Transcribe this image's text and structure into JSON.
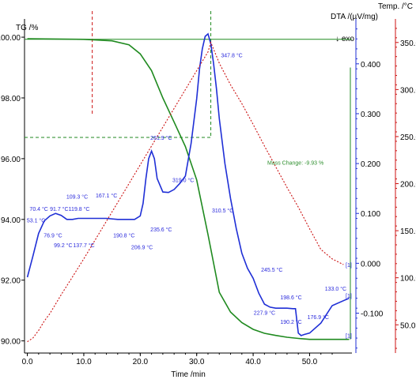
{
  "chart_data": {
    "type": "line",
    "title": "",
    "xlabel": "Time /min",
    "xlim": [
      -0.5,
      57.5
    ],
    "x_ticks": [
      0,
      10,
      20,
      30,
      40,
      50
    ],
    "x_tick_labels": [
      "0.0",
      "10.0",
      "20.0",
      "30.0",
      "40.0",
      "50.0"
    ],
    "axes": {
      "tg": {
        "label": "TG /%",
        "ylim": [
          89.6,
          100.6
        ],
        "ticks": [
          90,
          92,
          94,
          96,
          98,
          100
        ],
        "tick_labels": [
          "90.00",
          "92.00",
          "94.00",
          "96.00",
          "98.00",
          "100.00"
        ],
        "color": "#1f8a1f"
      },
      "dta": {
        "label": "DTA /(µV/mg)",
        "exo_label": "↓ exo",
        "ylim": [
          -0.18,
          0.49
        ],
        "ticks": [
          -0.1,
          0.0,
          0.1,
          0.2,
          0.3,
          0.4
        ],
        "tick_labels": [
          "-0.100",
          "0.000",
          "0.100",
          "0.200",
          "0.300",
          "0.400"
        ],
        "color": "#1f2fd6"
      },
      "temp": {
        "label": "Temp. /°C",
        "ylim": [
          20,
          375
        ],
        "ticks": [
          50,
          100,
          150,
          200,
          250,
          300,
          350
        ],
        "tick_labels": [
          "50.0",
          "100.0",
          "150.0",
          "200.0",
          "250.0",
          "300.0",
          "350.0"
        ],
        "color": "#cc1111"
      }
    },
    "series": [
      {
        "name": "TG",
        "axis": "tg",
        "color": "#1f8a1f",
        "x": [
          0,
          10,
          15,
          18,
          20,
          22,
          24,
          26,
          28,
          30,
          32,
          34,
          36,
          38,
          40,
          42,
          44,
          46,
          48,
          50,
          52,
          55,
          57
        ],
        "y": [
          99.95,
          99.93,
          99.88,
          99.75,
          99.45,
          98.9,
          98.0,
          97.2,
          96.4,
          95.3,
          93.5,
          91.6,
          90.95,
          90.6,
          90.38,
          90.25,
          90.18,
          90.12,
          90.08,
          90.05,
          90.05,
          90.05,
          90.05
        ]
      },
      {
        "name": "DTA",
        "axis": "dta",
        "color": "#1f2fd6",
        "x": [
          0,
          1,
          2,
          3,
          4,
          5,
          6,
          7,
          8,
          9,
          10,
          12,
          14,
          16,
          18,
          19,
          20,
          20.5,
          21,
          21.5,
          22,
          22.5,
          23,
          24,
          25,
          26,
          27,
          28,
          29,
          30,
          30.5,
          31,
          31.5,
          32,
          32.5,
          33,
          33.5,
          34,
          35,
          36,
          37,
          38,
          39,
          40,
          41,
          42,
          43,
          44,
          45,
          46,
          47,
          47.5,
          48,
          48.5,
          49,
          50,
          52,
          54,
          56,
          57
        ],
        "y": [
          -0.028,
          0.015,
          0.06,
          0.085,
          0.095,
          0.1,
          0.096,
          0.088,
          0.088,
          0.09,
          0.09,
          0.09,
          0.09,
          0.088,
          0.088,
          0.088,
          0.095,
          0.12,
          0.17,
          0.21,
          0.225,
          0.21,
          0.17,
          0.143,
          0.142,
          0.148,
          0.16,
          0.175,
          0.24,
          0.33,
          0.39,
          0.43,
          0.455,
          0.46,
          0.44,
          0.4,
          0.35,
          0.29,
          0.2,
          0.13,
          0.07,
          0.02,
          -0.01,
          -0.03,
          -0.06,
          -0.082,
          -0.088,
          -0.09,
          -0.09,
          -0.09,
          -0.091,
          -0.091,
          -0.14,
          -0.145,
          -0.143,
          -0.14,
          -0.12,
          -0.085,
          -0.075,
          -0.07
        ]
      },
      {
        "name": "Temp",
        "axis": "temp",
        "color": "#cc1111",
        "x": [
          0,
          1,
          2,
          3,
          4,
          6,
          8,
          10,
          12,
          14,
          16,
          18,
          20,
          22,
          24,
          26,
          28,
          30,
          32,
          32.5,
          34,
          36,
          38,
          40,
          42,
          44,
          46,
          48,
          50,
          52,
          54,
          56
        ],
        "y": [
          32,
          36,
          44,
          54,
          62,
          82,
          101,
          120,
          140,
          160,
          180,
          200,
          220,
          240,
          260,
          280,
          300,
          320,
          340,
          350,
          328,
          305,
          285,
          263,
          240,
          218,
          196,
          175,
          152,
          130,
          120,
          114
        ]
      }
    ],
    "annotations": [
      {
        "text": "70.4 °C",
        "x": 0.4,
        "y": 0.105,
        "axis": "dta"
      },
      {
        "text": "53.1 °C",
        "x": -0.1,
        "y": 0.082,
        "axis": "dta"
      },
      {
        "text": "76.9 °C",
        "x": 2.9,
        "y": 0.052,
        "axis": "dta"
      },
      {
        "text": "91.7 °C",
        "x": 4.0,
        "y": 0.105,
        "axis": "dta"
      },
      {
        "text": "99.2 °C",
        "x": 4.7,
        "y": 0.032,
        "axis": "dta"
      },
      {
        "text": "109.3 °C",
        "x": 6.9,
        "y": 0.13,
        "axis": "dta"
      },
      {
        "text": "119.8 °C",
        "x": 7.3,
        "y": 0.105,
        "axis": "dta"
      },
      {
        "text": "137.7 °C",
        "x": 8.1,
        "y": 0.032,
        "axis": "dta"
      },
      {
        "text": "167.1 °C",
        "x": 12.1,
        "y": 0.132,
        "axis": "dta"
      },
      {
        "text": "190.8 °C",
        "x": 15.2,
        "y": 0.052,
        "axis": "dta"
      },
      {
        "text": "206.9 °C",
        "x": 18.4,
        "y": 0.028,
        "axis": "dta"
      },
      {
        "text": "235.6 °C",
        "x": 21.8,
        "y": 0.064,
        "axis": "dta"
      },
      {
        "text": "261.9 °C",
        "x": 21.8,
        "y": 0.248,
        "axis": "dta"
      },
      {
        "text": "319.0 °C",
        "x": 25.7,
        "y": 0.163,
        "axis": "dta"
      },
      {
        "text": "347.8 °C",
        "x": 34.3,
        "y": 0.413,
        "axis": "dta"
      },
      {
        "text": "310.5 °C",
        "x": 32.7,
        "y": 0.102,
        "axis": "dta"
      },
      {
        "text": "245.5 °C",
        "x": 41.4,
        "y": -0.017,
        "axis": "dta"
      },
      {
        "text": "227.9 °C",
        "x": 40.1,
        "y": -0.103,
        "axis": "dta"
      },
      {
        "text": "198.6 °C",
        "x": 44.8,
        "y": -0.072,
        "axis": "dta"
      },
      {
        "text": "190.2 °C",
        "x": 44.8,
        "y": -0.121,
        "axis": "dta"
      },
      {
        "text": "176.9 °C",
        "x": 49.6,
        "y": -0.112,
        "axis": "dta"
      },
      {
        "text": "133.0 °C",
        "x": 52.7,
        "y": -0.055,
        "axis": "dta"
      }
    ],
    "mass_change_label": "Mass Change: -9.93 %",
    "end_markers": [
      "[1]",
      "[1]",
      "[1]"
    ],
    "grid": false,
    "legend": "none"
  }
}
